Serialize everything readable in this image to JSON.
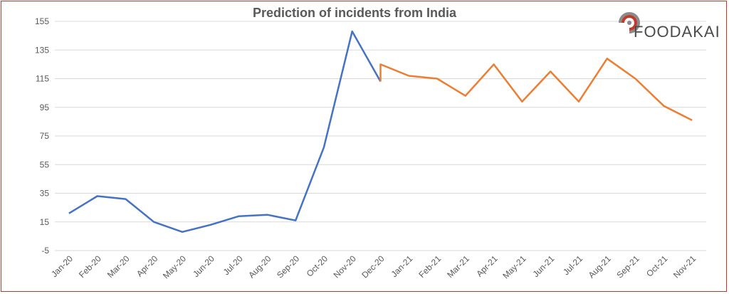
{
  "chart_data": {
    "type": "line",
    "title": "Prediction of incidents from India",
    "xlabel": "",
    "ylabel": "",
    "ylim": [
      -5,
      155
    ],
    "yticks": [
      "155",
      "135",
      "115",
      "95",
      "75",
      "55",
      "35",
      "15",
      "-5"
    ],
    "categories": [
      "Jan-20",
      "Feb-20",
      "Mar-20",
      "Apr-20",
      "May-20",
      "Jun-20",
      "Jul-20",
      "Aug-20",
      "Sep-20",
      "Oct-20",
      "Nov-20",
      "Dec-20",
      "Jan-21",
      "Feb-21",
      "Mar-21",
      "Apr-21",
      "May-21",
      "Jun-21",
      "Jul-21",
      "Aug-21",
      "Sep-21",
      "Oct-21",
      "Nov-21"
    ],
    "grid": true,
    "legend": "none",
    "series": [
      {
        "color": "#4472C4",
        "points": [
          {
            "x": "Jan-20",
            "y": 21
          },
          {
            "x": "Feb-20",
            "y": 33
          },
          {
            "x": "Mar-20",
            "y": 31
          },
          {
            "x": "Apr-20",
            "y": 15
          },
          {
            "x": "May-20",
            "y": 8
          },
          {
            "x": "Jun-20",
            "y": 13
          },
          {
            "x": "Jul-20",
            "y": 19
          },
          {
            "x": "Aug-20",
            "y": 20
          },
          {
            "x": "Sep-20",
            "y": 16
          },
          {
            "x": "Oct-20",
            "y": 67
          },
          {
            "x": "Nov-20",
            "y": 148
          },
          {
            "x": "Dec-20",
            "y": 113
          }
        ]
      },
      {
        "color": "#ED7D31",
        "points": [
          {
            "x": "Dec-20",
            "y": 113
          },
          {
            "x": "Dec-20",
            "y": 125
          },
          {
            "x": "Jan-21",
            "y": 117
          },
          {
            "x": "Feb-21",
            "y": 115
          },
          {
            "x": "Mar-21",
            "y": 103
          },
          {
            "x": "Apr-21",
            "y": 125
          },
          {
            "x": "May-21",
            "y": 99
          },
          {
            "x": "Jun-21",
            "y": 120
          },
          {
            "x": "Jul-21",
            "y": 99
          },
          {
            "x": "Aug-21",
            "y": 129
          },
          {
            "x": "Sep-21",
            "y": 115
          },
          {
            "x": "Oct-21",
            "y": 96
          },
          {
            "x": "Nov-21",
            "y": 86
          }
        ]
      }
    ]
  },
  "logo": {
    "text": "FOODAKAI",
    "colors": {
      "arc_red": "#c0392b",
      "arc_gray": "#8a8a8a",
      "text": "#4a4a4a"
    }
  },
  "colors": {
    "border": "#c0392b",
    "grid": "#d9d9d9",
    "axis_text": "#595959"
  }
}
